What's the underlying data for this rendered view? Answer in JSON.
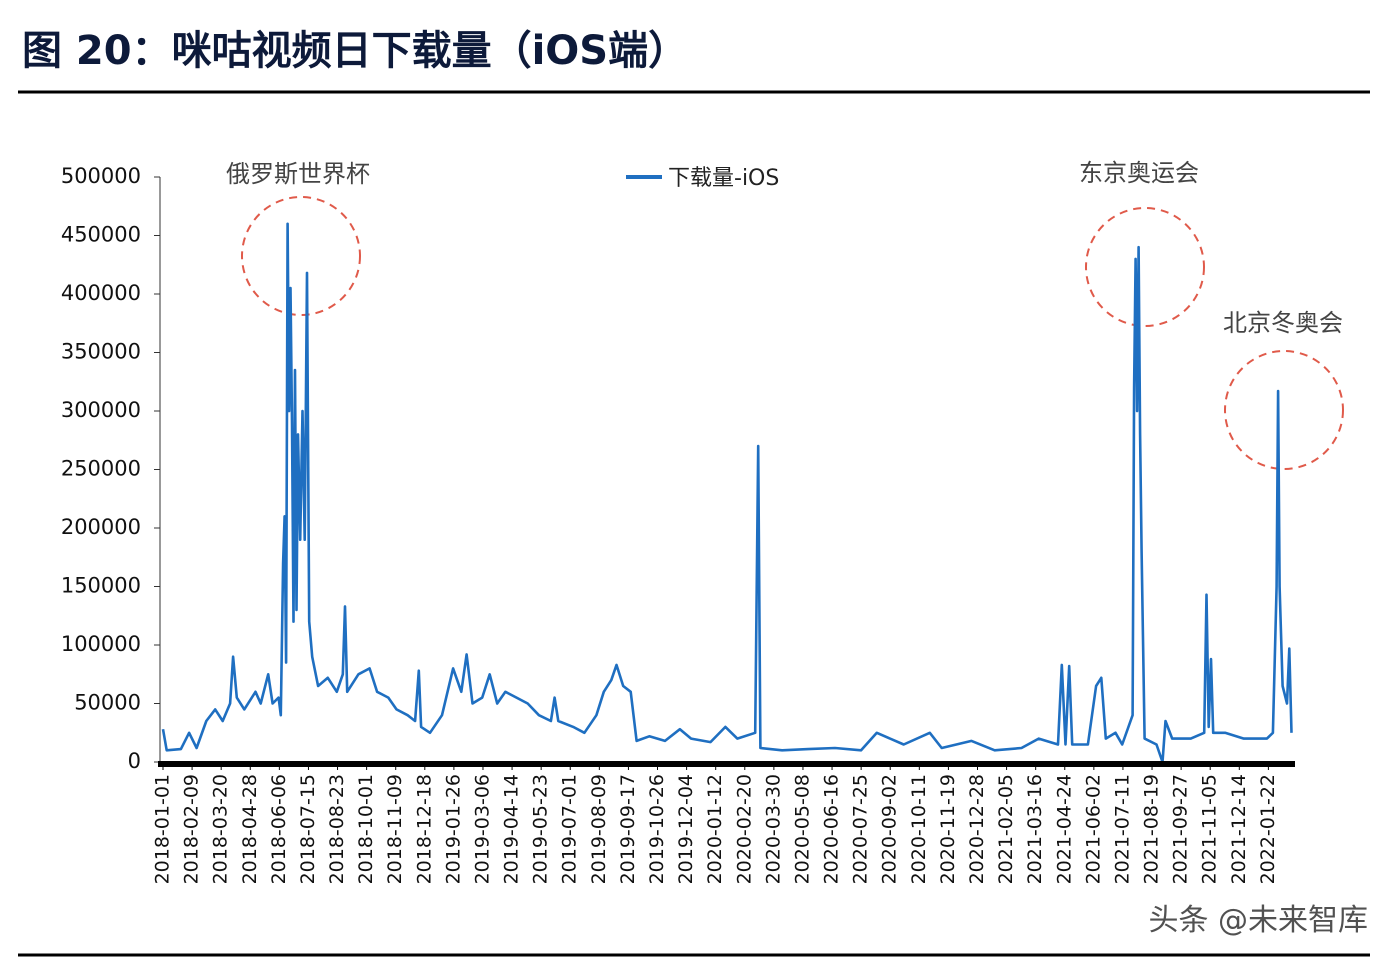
{
  "chart_data": {
    "type": "line",
    "title": "图 20：咪咕视频日下载量（iOS端）",
    "annotations": [
      "俄罗斯世界杯",
      "东京奥运会",
      "北京冬奥会"
    ],
    "watermark": "头条 @未来智库",
    "legend": "top",
    "xlim": [
      "2018-01-01",
      "2022-02-24"
    ],
    "ylim": [
      0,
      500000
    ],
    "yticks": [
      0,
      50000,
      100000,
      150000,
      200000,
      250000,
      300000,
      350000,
      400000,
      450000,
      500000
    ],
    "xticks": [
      "2018-01-01",
      "2018-02-09",
      "2018-03-20",
      "2018-04-28",
      "2018-06-06",
      "2018-07-15",
      "2018-08-23",
      "2018-10-01",
      "2018-11-09",
      "2018-12-18",
      "2019-01-26",
      "2019-03-06",
      "2019-04-14",
      "2019-05-23",
      "2019-07-01",
      "2019-08-09",
      "2019-09-17",
      "2019-10-26",
      "2019-12-04",
      "2020-01-12",
      "2020-02-20",
      "2020-03-30",
      "2020-05-08",
      "2020-06-16",
      "2020-07-25",
      "2020-09-02",
      "2020-10-11",
      "2020-11-19",
      "2020-12-28",
      "2021-02-05",
      "2021-03-16",
      "2021-04-24",
      "2021-06-02",
      "2021-07-11",
      "2021-08-19",
      "2021-09-27",
      "2021-11-05",
      "2021-12-14",
      "2022-01-22"
    ],
    "x": [
      "2018-01-01",
      "2018-01-06",
      "2018-01-25",
      "2018-02-05",
      "2018-02-15",
      "2018-02-28",
      "2018-03-12",
      "2018-03-22",
      "2018-04-01",
      "2018-04-05",
      "2018-04-10",
      "2018-04-20",
      "2018-05-05",
      "2018-05-12",
      "2018-05-22",
      "2018-05-28",
      "2018-06-05",
      "2018-06-08",
      "2018-06-11",
      "2018-06-13",
      "2018-06-15",
      "2018-06-17",
      "2018-06-19",
      "2018-06-21",
      "2018-06-23",
      "2018-06-25",
      "2018-06-27",
      "2018-06-29",
      "2018-07-01",
      "2018-07-04",
      "2018-07-07",
      "2018-07-10",
      "2018-07-13",
      "2018-07-16",
      "2018-07-20",
      "2018-07-28",
      "2018-08-10",
      "2018-08-22",
      "2018-08-30",
      "2018-09-02",
      "2018-09-05",
      "2018-09-20",
      "2018-10-05",
      "2018-10-15",
      "2018-10-30",
      "2018-11-10",
      "2018-11-25",
      "2018-12-05",
      "2018-12-10",
      "2018-12-13",
      "2018-12-25",
      "2019-01-10",
      "2019-01-25",
      "2019-02-05",
      "2019-02-12",
      "2019-02-20",
      "2019-03-05",
      "2019-03-15",
      "2019-03-25",
      "2019-04-05",
      "2019-04-20",
      "2019-05-05",
      "2019-05-20",
      "2019-06-05",
      "2019-06-10",
      "2019-06-15",
      "2019-07-05",
      "2019-07-20",
      "2019-08-05",
      "2019-08-15",
      "2019-08-25",
      "2019-09-01",
      "2019-09-10",
      "2019-09-20",
      "2019-09-28",
      "2019-10-15",
      "2019-11-05",
      "2019-11-25",
      "2019-12-10",
      "2020-01-05",
      "2020-01-25",
      "2020-02-10",
      "2020-03-05",
      "2020-03-09",
      "2020-03-12",
      "2020-04-10",
      "2020-05-15",
      "2020-06-20",
      "2020-07-25",
      "2020-08-15",
      "2020-09-20",
      "2020-10-25",
      "2020-11-10",
      "2020-12-20",
      "2021-01-20",
      "2021-02-25",
      "2021-03-20",
      "2021-04-15",
      "2021-04-20",
      "2021-04-25",
      "2021-04-30",
      "2021-05-04",
      "2021-05-25",
      "2021-06-05",
      "2021-06-12",
      "2021-06-18",
      "2021-07-01",
      "2021-07-10",
      "2021-07-24",
      "2021-07-26",
      "2021-07-28",
      "2021-07-30",
      "2021-08-01",
      "2021-08-03",
      "2021-08-05",
      "2021-08-09",
      "2021-08-25",
      "2021-09-02",
      "2021-09-06",
      "2021-09-15",
      "2021-10-10",
      "2021-10-28",
      "2021-10-31",
      "2021-11-03",
      "2021-11-06",
      "2021-11-09",
      "2021-11-25",
      "2021-12-20",
      "2022-01-20",
      "2022-01-28",
      "2022-02-02",
      "2022-02-04",
      "2022-02-06",
      "2022-02-10",
      "2022-02-16",
      "2022-02-19",
      "2022-02-22"
    ],
    "series": [
      {
        "name": "下载量-iOS",
        "color": "#1f6fc1",
        "values": [
          28000,
          10000,
          11000,
          25000,
          12000,
          35000,
          45000,
          35000,
          50000,
          90000,
          55000,
          45000,
          60000,
          50000,
          75000,
          50000,
          55000,
          40000,
          170000,
          210000,
          85000,
          460000,
          300000,
          405000,
          290000,
          120000,
          335000,
          130000,
          280000,
          190000,
          300000,
          190000,
          418000,
          120000,
          90000,
          65000,
          72000,
          60000,
          75000,
          133000,
          60000,
          75000,
          80000,
          60000,
          55000,
          45000,
          40000,
          35000,
          78000,
          30000,
          25000,
          40000,
          80000,
          60000,
          92000,
          50000,
          55000,
          75000,
          50000,
          60000,
          55000,
          50000,
          40000,
          35000,
          55000,
          35000,
          30000,
          25000,
          40000,
          60000,
          70000,
          83000,
          65000,
          60000,
          18000,
          22000,
          18000,
          28000,
          20000,
          17000,
          30000,
          20000,
          25000,
          270000,
          12000,
          10000,
          11000,
          12000,
          10000,
          25000,
          15000,
          25000,
          12000,
          18000,
          10000,
          12000,
          20000,
          15000,
          83000,
          15000,
          82000,
          15000,
          15000,
          65000,
          72000,
          20000,
          25000,
          15000,
          40000,
          320000,
          430000,
          300000,
          440000,
          280000,
          180000,
          20000,
          15000,
          0,
          35000,
          20000,
          20000,
          25000,
          143000,
          30000,
          88000,
          25000,
          25000,
          20000,
          20000,
          25000,
          150000,
          317000,
          150000,
          65000,
          50000,
          97000,
          25000
        ]
      }
    ]
  }
}
